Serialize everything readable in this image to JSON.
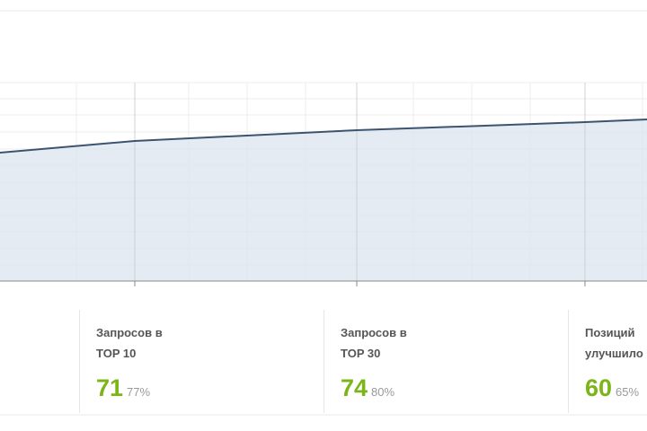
{
  "stats": [
    {
      "title_lines": [
        "Запросов в",
        "TOP 10"
      ],
      "value": "71",
      "percent": "77%"
    },
    {
      "title_lines": [
        "Запросов в",
        "TOP 30"
      ],
      "value": "74",
      "percent": "80%"
    },
    {
      "title_lines": [
        "Позиций",
        "улучшило"
      ],
      "value": "60",
      "percent": "65%"
    }
  ]
}
